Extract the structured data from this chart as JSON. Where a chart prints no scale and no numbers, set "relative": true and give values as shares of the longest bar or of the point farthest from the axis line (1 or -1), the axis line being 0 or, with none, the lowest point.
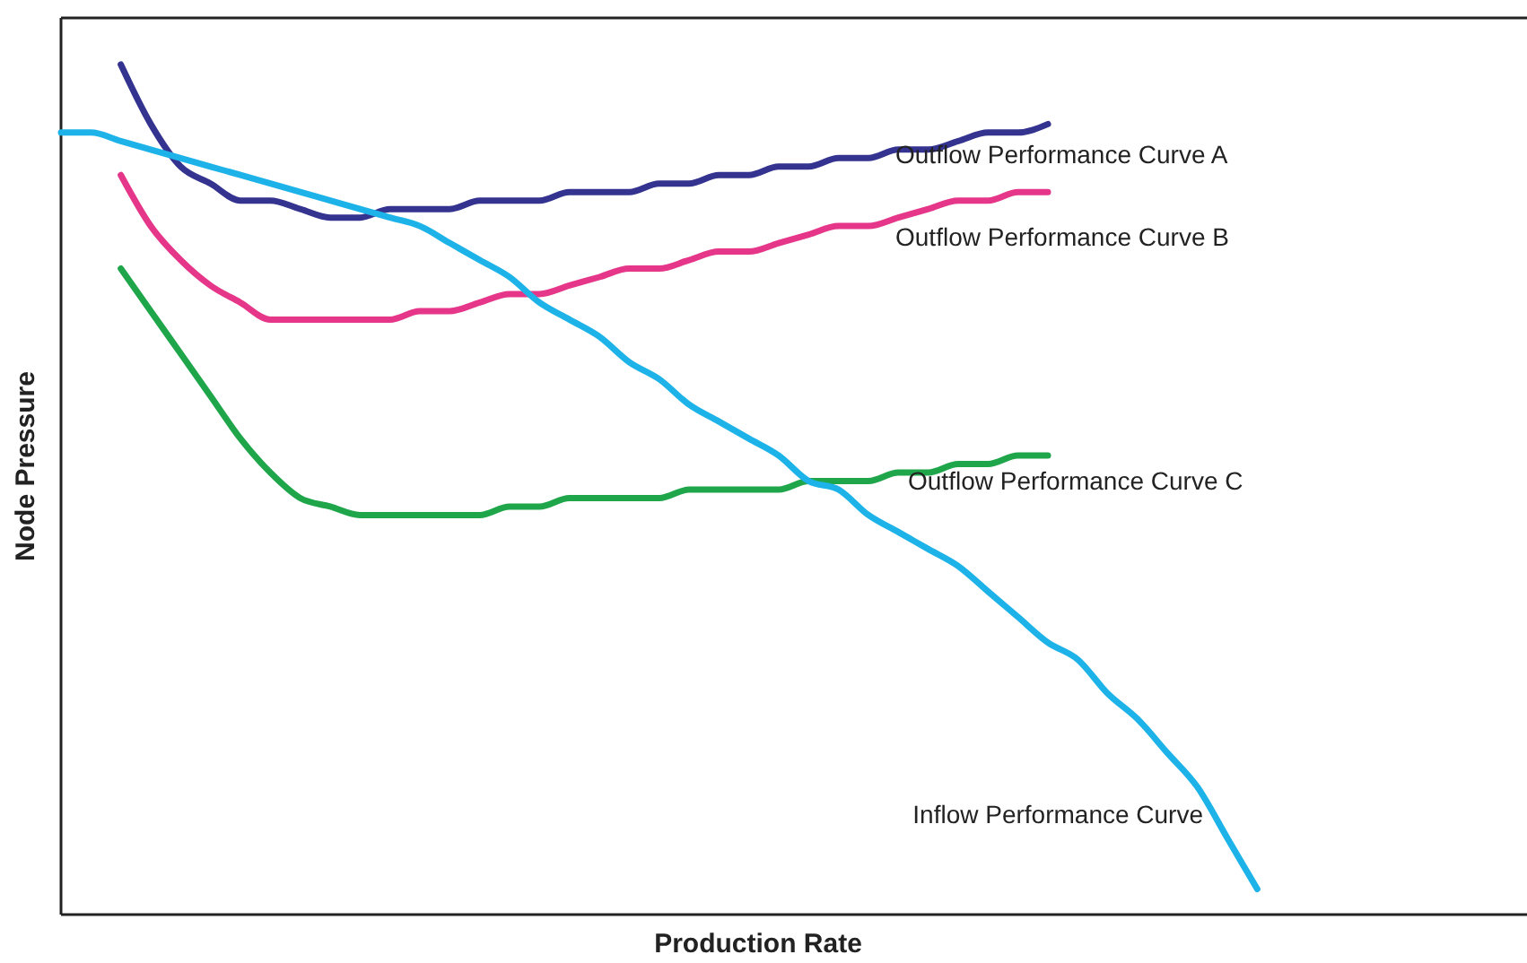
{
  "chart_data": {
    "type": "line",
    "relative": true,
    "xlabel": "Production Rate",
    "ylabel": "Node Pressure",
    "marker": "none",
    "line_style": "solid",
    "categories": [
      null,
      null,
      null,
      null,
      null,
      null,
      null,
      null,
      null,
      null,
      null,
      null,
      null,
      null,
      null,
      null,
      null,
      null,
      null,
      null,
      null,
      null,
      null,
      null,
      null,
      null,
      null,
      null,
      null,
      null,
      null,
      null,
      null,
      null,
      null,
      null,
      null,
      null,
      null,
      null,
      null,
      null,
      null,
      null,
      null,
      null,
      null,
      null,
      null
    ],
    "series": [
      {
        "name": "Outflow Performance Curve A",
        "color": "#34338f",
        "values": [
          null,
          null,
          1.0,
          0.93,
          0.88,
          0.86,
          0.84,
          0.84,
          0.83,
          0.82,
          0.82,
          0.83,
          0.83,
          0.83,
          0.84,
          0.84,
          0.84,
          0.85,
          0.85,
          0.85,
          0.86,
          0.86,
          0.87,
          0.87,
          0.88,
          0.88,
          0.89,
          0.89,
          0.9,
          0.9,
          0.91,
          0.92,
          0.92,
          0.93,
          null,
          null,
          null,
          null,
          null,
          null,
          null,
          null,
          null,
          null,
          null,
          null,
          null,
          null,
          null
        ]
      },
      {
        "name": "Outflow Performance Curve B",
        "color": "#e5368a",
        "values": [
          null,
          null,
          0.87,
          0.81,
          0.77,
          0.74,
          0.72,
          0.7,
          0.7,
          0.7,
          0.7,
          0.7,
          0.71,
          0.71,
          0.72,
          0.73,
          0.73,
          0.74,
          0.75,
          0.76,
          0.76,
          0.77,
          0.78,
          0.78,
          0.79,
          0.8,
          0.81,
          0.81,
          0.82,
          0.83,
          0.84,
          0.84,
          0.85,
          0.85,
          null,
          null,
          null,
          null,
          null,
          null,
          null,
          null,
          null,
          null,
          null,
          null,
          null,
          null,
          null
        ]
      },
      {
        "name": "Outflow Performance Curve C",
        "color": "#1fa64a",
        "values": [
          null,
          null,
          0.76,
          0.71,
          0.66,
          0.61,
          0.56,
          0.52,
          0.49,
          0.48,
          0.47,
          0.47,
          0.47,
          0.47,
          0.47,
          0.48,
          0.48,
          0.49,
          0.49,
          0.49,
          0.49,
          0.5,
          0.5,
          0.5,
          0.5,
          0.51,
          0.51,
          0.51,
          0.52,
          0.52,
          0.53,
          0.53,
          0.54,
          0.54,
          null,
          null,
          null,
          null,
          null,
          null,
          null,
          null,
          null,
          null,
          null,
          null,
          null,
          null,
          null
        ]
      },
      {
        "name": "Inflow Performance Curve",
        "color": "#1db3e8",
        "values": [
          0.92,
          0.92,
          0.91,
          0.9,
          0.89,
          0.88,
          0.87,
          0.86,
          0.85,
          0.84,
          0.83,
          0.82,
          0.81,
          0.79,
          0.77,
          0.75,
          0.72,
          0.7,
          0.68,
          0.65,
          0.63,
          0.6,
          0.58,
          0.56,
          0.54,
          0.51,
          0.5,
          0.47,
          0.45,
          0.43,
          0.41,
          0.38,
          0.35,
          0.32,
          0.3,
          0.26,
          0.23,
          0.19,
          0.15,
          0.09,
          0.03,
          null,
          null,
          null,
          null,
          null,
          null,
          null,
          null
        ]
      }
    ]
  }
}
